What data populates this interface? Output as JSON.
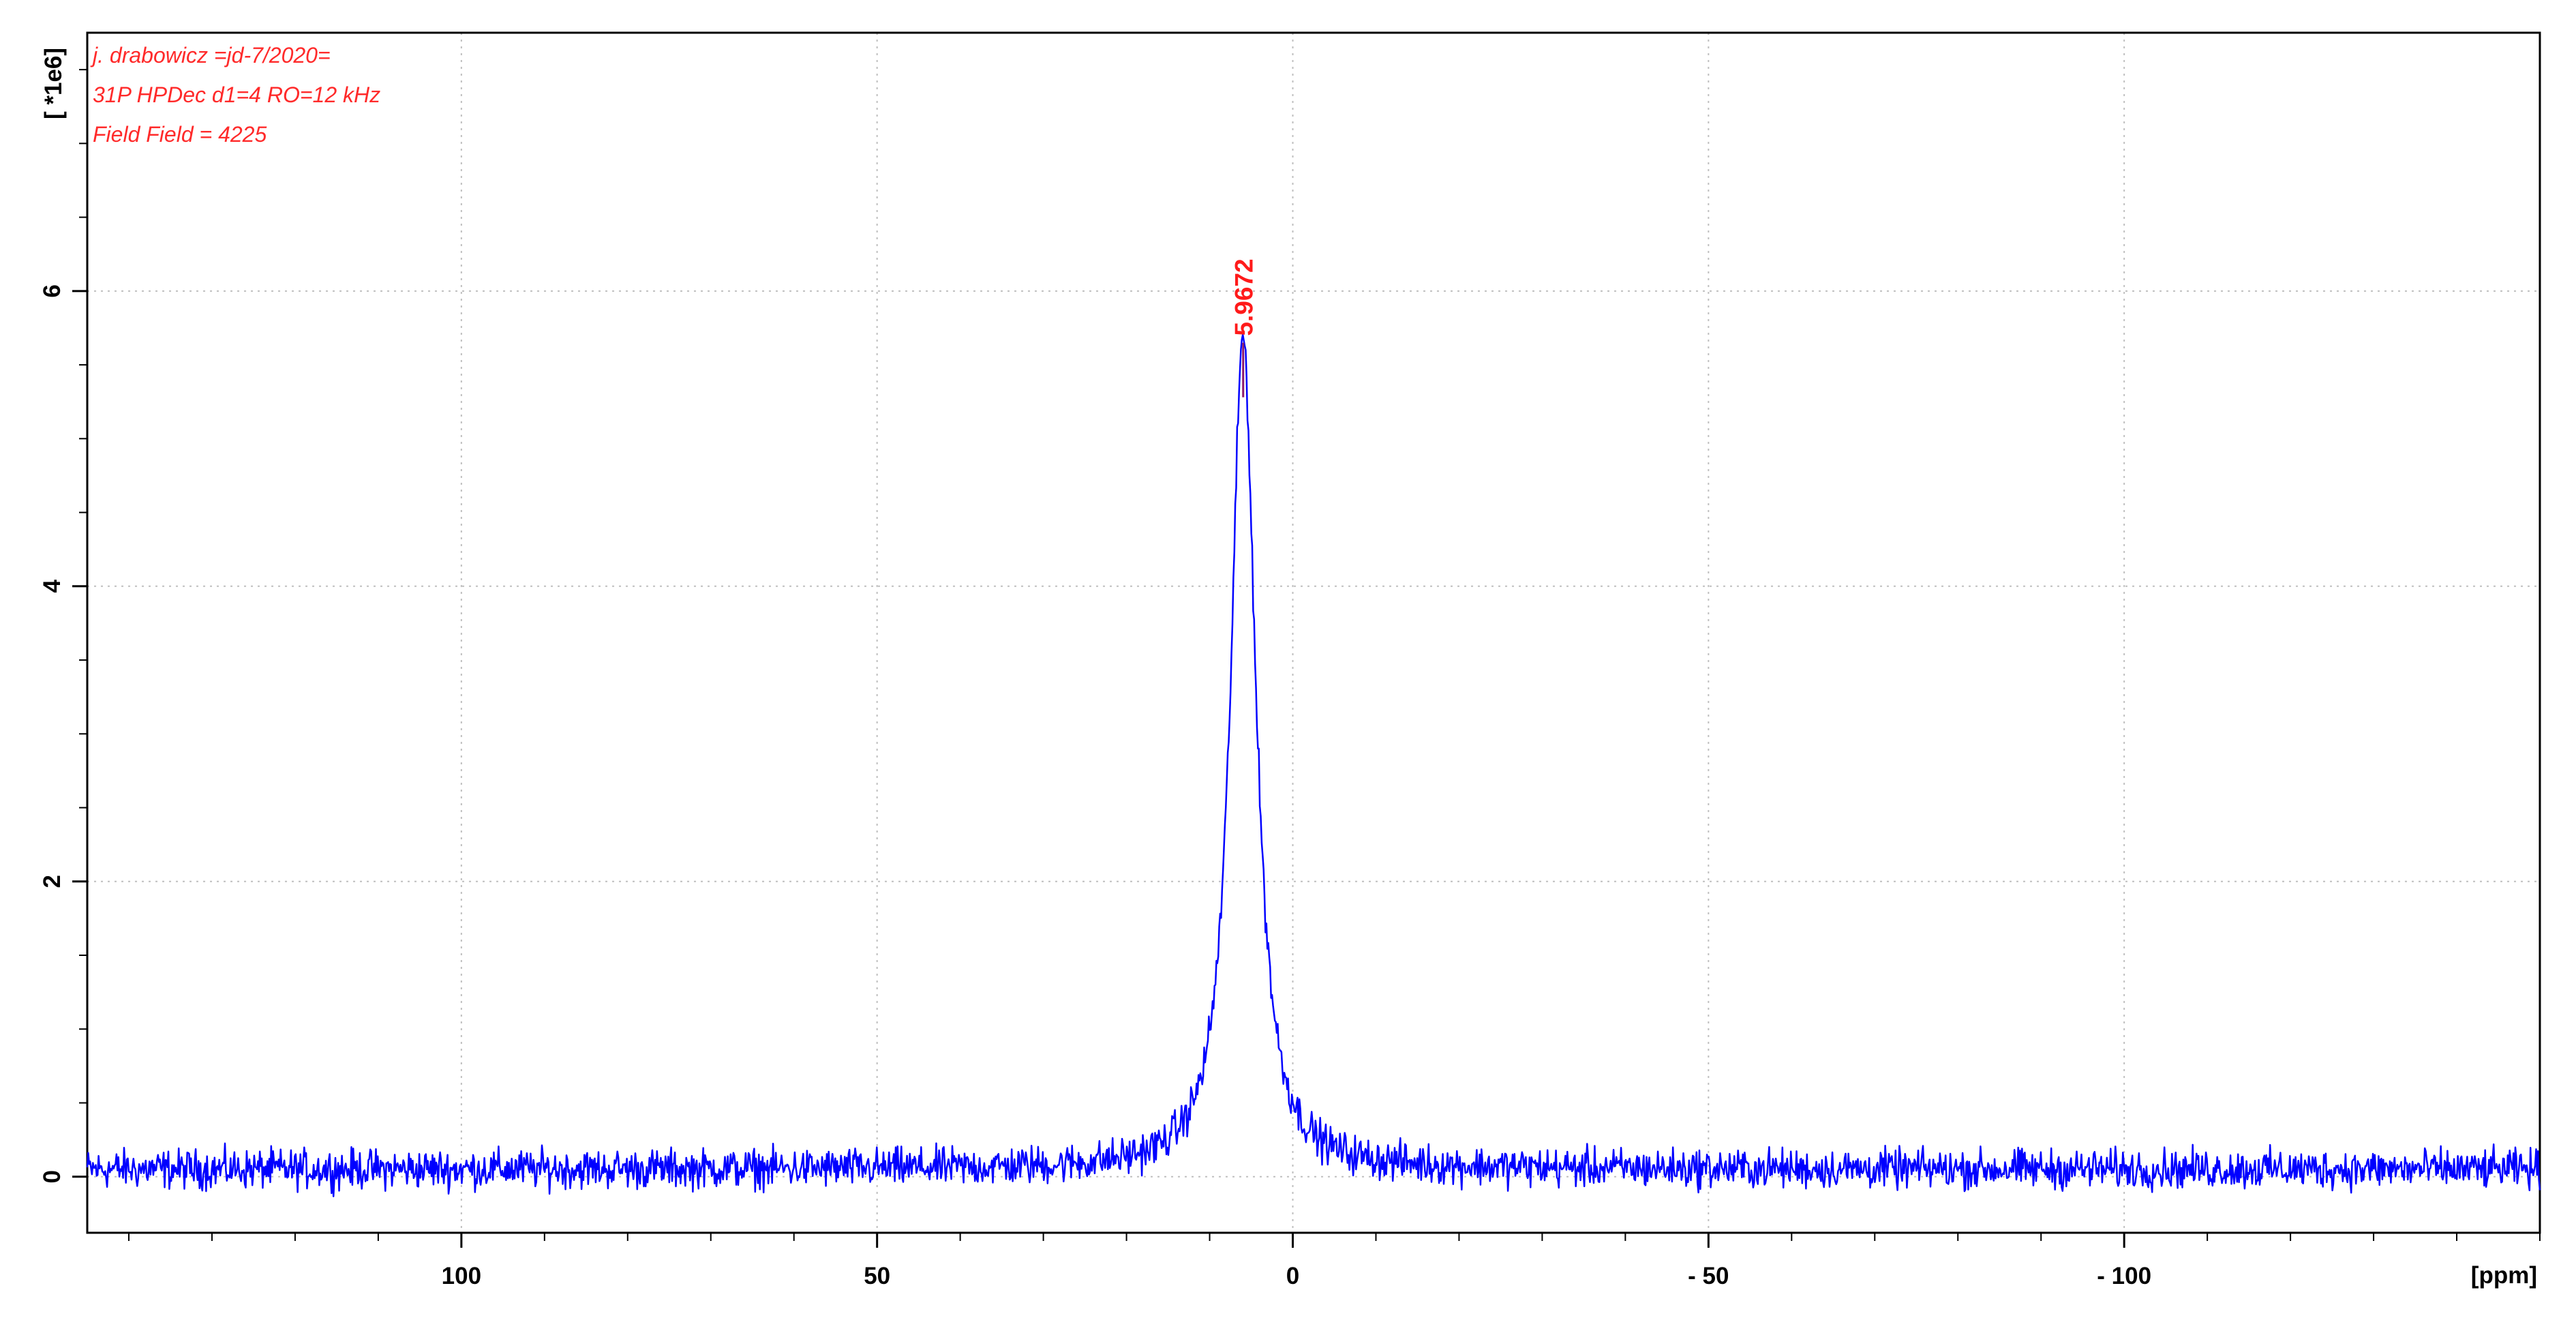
{
  "chart_data": {
    "type": "line",
    "title": "",
    "xlabel": "[ppm]",
    "ylabel": "[ *1e6]",
    "xlim": [
      145,
      -150
    ],
    "ylim": [
      -0.38,
      7.75
    ],
    "x_reversed": true,
    "grid": true,
    "x_ticks": [
      100,
      50,
      0,
      -50,
      -100
    ],
    "x_tick_labels": [
      "100",
      "50",
      "0",
      "- 50",
      "- 100"
    ],
    "x_minor_step": 10,
    "y_ticks": [
      0,
      2,
      4,
      6
    ],
    "y_tick_labels": [
      "0",
      "2",
      "4",
      "6"
    ],
    "annotations": [
      "j. drabowicz =jd-7/2020=",
      "31P HPDec  d1=4   RO=12 kHz",
      "Field Field = 4225"
    ],
    "peaks": [
      {
        "x": 5.9672,
        "y": 5.65,
        "label": "5.9672"
      }
    ],
    "series": [
      {
        "color": "#0000ff",
        "lineshape": "lorentzian-with-noise",
        "center": 5.9672,
        "height": 5.65,
        "width": 1.8,
        "baseline": 0.05,
        "noise_amplitude": 0.1,
        "x_range": [
          145,
          -150
        ]
      }
    ]
  },
  "colors": {
    "spectrum": "#0000ff",
    "annotation": "#ff2a2a",
    "peak_label": "#ff1a1a",
    "grid": "#bfbfbf",
    "axis": "#000000"
  }
}
